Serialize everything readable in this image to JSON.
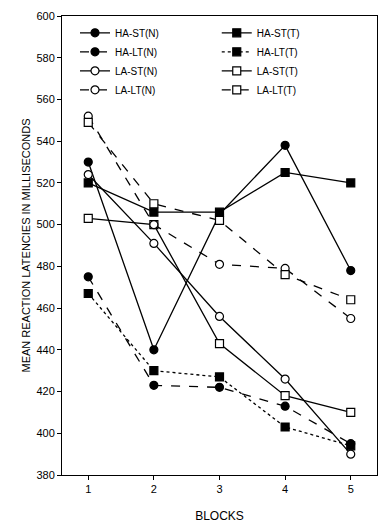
{
  "chart_data": {
    "type": "line",
    "x_label": "BLOCKS",
    "y_label": "MEAN REACTION LATENCIES IN MILLISECONDS",
    "x": [
      1,
      2,
      3,
      4,
      5
    ],
    "xlim": [
      0.6,
      5.4
    ],
    "xticks": [
      1,
      2,
      3,
      4,
      5
    ],
    "ylim": [
      380,
      600
    ],
    "yticks": [
      380,
      400,
      420,
      440,
      460,
      480,
      500,
      520,
      540,
      560,
      580,
      600
    ],
    "grid": false,
    "legend": "top",
    "series": [
      {
        "name": "HA-ST(N)",
        "color": "#000000",
        "marker": "circle",
        "line_style": "solid",
        "values": [
          530,
          440,
          505,
          538,
          478
        ]
      },
      {
        "name": "HA-ST(T)",
        "color": "#000000",
        "marker": "square",
        "line_style": "solid",
        "values": [
          520,
          506,
          506,
          525,
          520
        ]
      },
      {
        "name": "HA-LT(N)",
        "color": "#000000",
        "marker": "circle",
        "line_style": "dash",
        "values": [
          475,
          423,
          422,
          413,
          395
        ]
      },
      {
        "name": "HA-LT(T)",
        "color": "#000000",
        "marker": "square",
        "line_style": "dot",
        "values": [
          467,
          430,
          427,
          403,
          394
        ]
      },
      {
        "name": "LA-ST(N)",
        "color": "#000000",
        "marker": "circle-open",
        "line_style": "solid",
        "values": [
          524,
          491,
          456,
          426,
          390
        ]
      },
      {
        "name": "LA-ST(T)",
        "color": "#000000",
        "marker": "square-open",
        "line_style": "solid",
        "values": [
          503,
          500,
          443,
          418,
          410
        ]
      },
      {
        "name": "LA-LT(N)",
        "color": "#000000",
        "marker": "circle-open",
        "line_style": "dash",
        "values": [
          552,
          500,
          481,
          479,
          455
        ]
      },
      {
        "name": "LA-LT(T)",
        "color": "#000000",
        "marker": "square-open",
        "line_style": "dash",
        "values": [
          549,
          510,
          502,
          476,
          464
        ]
      }
    ]
  }
}
